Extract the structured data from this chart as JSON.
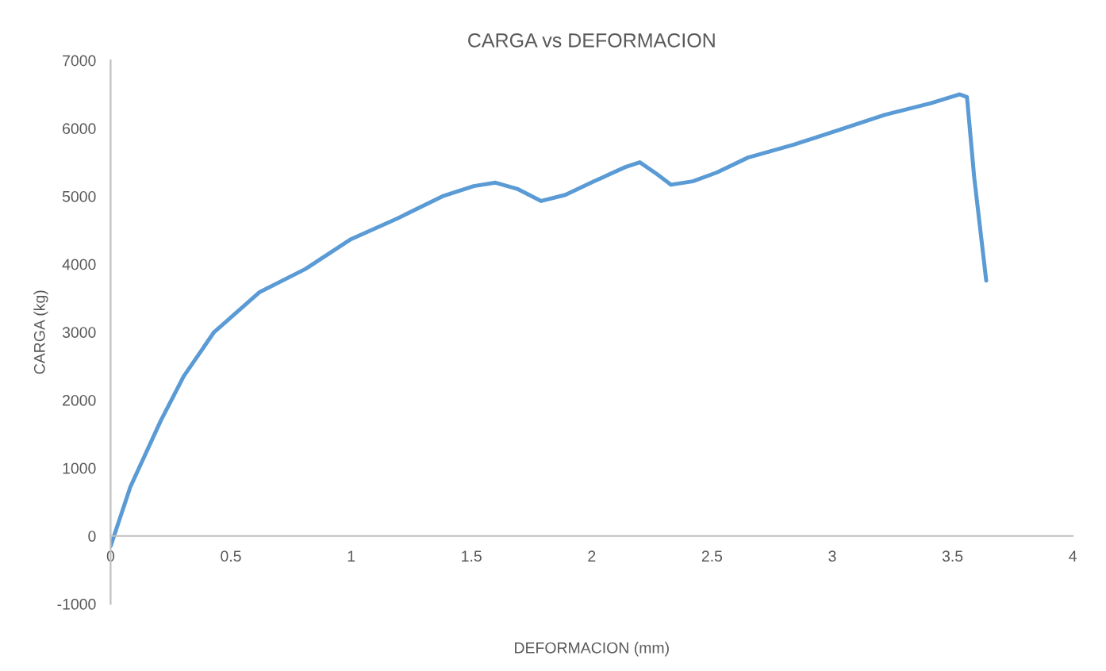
{
  "chart_data": {
    "type": "line",
    "title": "CARGA vs DEFORMACION",
    "xlabel": "DEFORMACION (mm)",
    "ylabel": "CARGA (kg)",
    "series": [
      {
        "color": "#5b9bd5",
        "x": [
          0,
          0.082,
          0.209,
          0.304,
          0.43,
          0.62,
          0.81,
          1.0,
          1.19,
          1.38,
          1.51,
          1.6,
          1.69,
          1.79,
          1.89,
          2.01,
          2.14,
          2.2,
          2.27,
          2.33,
          2.42,
          2.52,
          2.65,
          2.84,
          3.03,
          3.22,
          3.41,
          3.53,
          3.56,
          3.59,
          3.64
        ],
        "values": [
          -150,
          720,
          1700,
          2350,
          3000,
          3590,
          3930,
          4370,
          4670,
          5000,
          5150,
          5200,
          5110,
          4930,
          5020,
          5220,
          5430,
          5500,
          5330,
          5170,
          5220,
          5350,
          5570,
          5760,
          5980,
          6200,
          6370,
          6500,
          6460,
          5280,
          3760
        ]
      }
    ],
    "xlim": [
      0,
      4
    ],
    "xticks": [
      0,
      0.5,
      1,
      1.5,
      2,
      2.5,
      3,
      3.5,
      4
    ],
    "ylim": [
      -1000,
      7000
    ],
    "yticks": [
      -1000,
      0,
      1000,
      2000,
      3000,
      4000,
      5000,
      6000,
      7000
    ],
    "grid": false,
    "legend": false,
    "marker": "none",
    "line_style": "solid"
  }
}
